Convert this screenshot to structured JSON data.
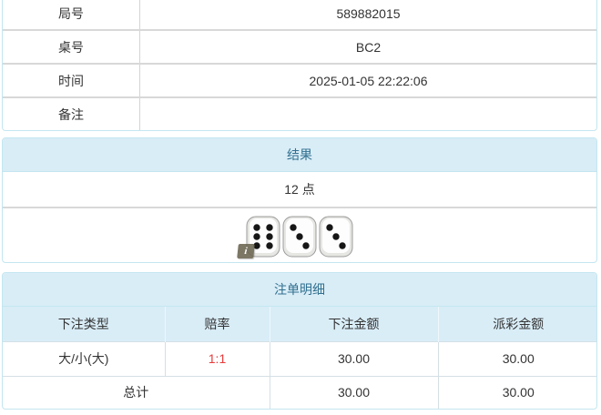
{
  "info_table": {
    "rows": [
      {
        "label": "局号",
        "value": "589882015"
      },
      {
        "label": "桌号",
        "value": "BC2"
      },
      {
        "label": "时间",
        "value": "2025-01-05 22:22:06"
      },
      {
        "label": "备注",
        "value": ""
      }
    ]
  },
  "result_panel": {
    "title": "结果",
    "points": "12 点",
    "dice": [
      6,
      3,
      3
    ],
    "info_icon_glyph": "i"
  },
  "bet_panel": {
    "title": "注单明细",
    "columns": [
      "下注类型",
      "赔率",
      "下注金额",
      "派彩金额"
    ],
    "rows": [
      {
        "type": "大/小(大)",
        "odds": "1:1",
        "bet": "30.00",
        "payout": "30.00"
      }
    ],
    "total": {
      "label": "总计",
      "bet": "30.00",
      "payout": "30.00"
    }
  },
  "colors": {
    "header_bg": "#d9edf7",
    "header_text": "#31708f",
    "panel_border": "#c3e6f0",
    "divider": "#d8d8d8",
    "odds_red": "#e83a3a",
    "text": "#333333"
  }
}
